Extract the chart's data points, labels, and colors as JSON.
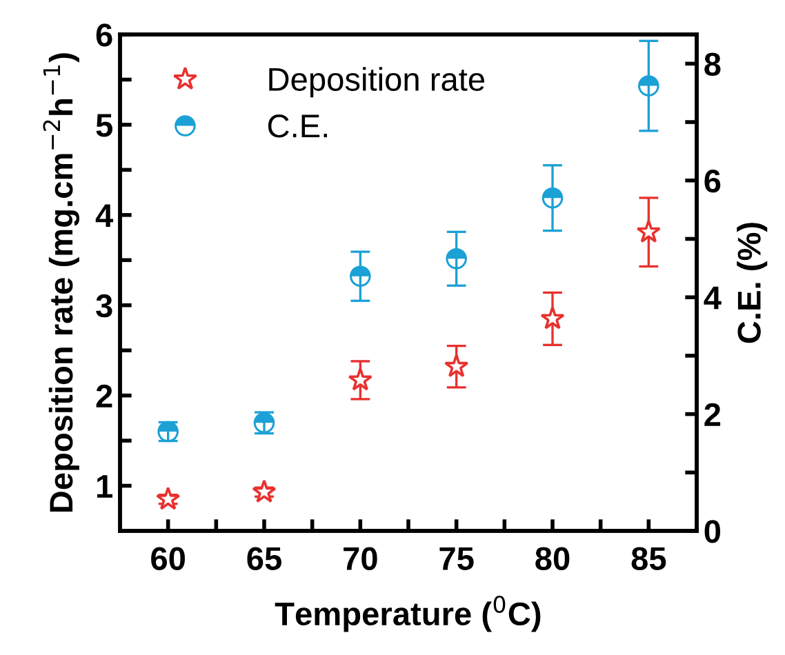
{
  "chart_data": {
    "type": "scatter",
    "xlabel": "Temperature ($^{0}$C)",
    "ylabel": "Deposition rate (mg.cm$^{−2}$h$^{−1}$)",
    "y2label": "C.E. (%)",
    "x": [
      60,
      65,
      70,
      75,
      80,
      85
    ],
    "xlim": [
      57.5,
      87.5
    ],
    "xticks": [
      60,
      {
        "value": 62.5,
        "label": null
      },
      65,
      {
        "value": 67.5,
        "label": null
      },
      70,
      {
        "value": 72.5,
        "label": null
      },
      75,
      {
        "value": 77.5,
        "label": null
      },
      80,
      {
        "value": 82.5,
        "label": null
      },
      85
    ],
    "ylim": [
      0.5,
      6
    ],
    "yticks": [
      1,
      {
        "value": 1.5,
        "label": null
      },
      2,
      {
        "value": 2.5,
        "label": null
      },
      3,
      {
        "value": 3.5,
        "label": null
      },
      4,
      {
        "value": 4.5,
        "label": null
      },
      5,
      {
        "value": 5.5,
        "label": null
      },
      6
    ],
    "y2lim": [
      0,
      8.5
    ],
    "y2ticks": [
      0,
      {
        "value": 1,
        "label": null
      },
      2,
      {
        "value": 3,
        "label": null
      },
      4,
      {
        "value": 5,
        "label": null
      },
      6,
      {
        "value": 7,
        "label": null
      },
      8
    ],
    "series": [
      {
        "name": "Deposition rate",
        "color": "#e8312f",
        "marker": "star",
        "values": [
          0.85,
          0.93,
          2.17,
          2.32,
          2.85,
          3.81
        ],
        "errors": [
          0.05,
          0.05,
          0.21,
          0.23,
          0.29,
          0.38
        ]
      },
      {
        "name": "C.E.",
        "color": "#1ba1d6",
        "marker": "circle",
        "axis": "y2",
        "values": [
          1.7,
          1.85,
          4.36,
          4.66,
          5.7,
          7.62
        ],
        "errors": [
          0.16,
          0.18,
          0.42,
          0.46,
          0.56,
          0.77
        ]
      }
    ],
    "legend": "top left",
    "grid": false
  }
}
